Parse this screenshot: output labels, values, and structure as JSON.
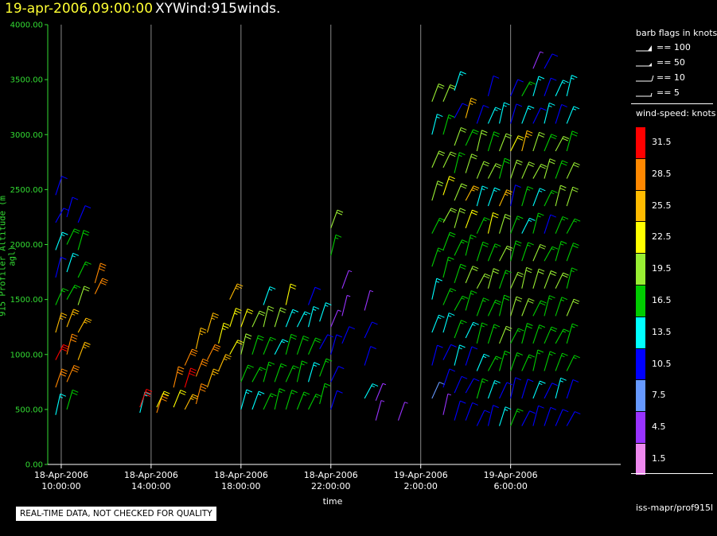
{
  "header": {
    "timestamp": "19-apr-2006,09:00:00",
    "product": "XYWind:915winds."
  },
  "legend": {
    "barb_title": "barb flags in knots",
    "barbs": [
      {
        "label": "== 100",
        "kind": "pennant"
      },
      {
        "label": "== 50",
        "kind": "half-pennant"
      },
      {
        "label": "== 10",
        "kind": "full-barb"
      },
      {
        "label": "== 5",
        "kind": "half-barb"
      }
    ],
    "speed_title": "wind-speed: knots",
    "source": "iss-mapr/prof915l"
  },
  "qc_note": "REAL-TIME DATA, NOT CHECKED FOR QUALITY",
  "chart_data": {
    "type": "scatter",
    "title": "19-apr-2006,09:00:00  XYWind:915winds.",
    "xlabel": "time",
    "ylabel": "915 Profiler Altitude (m agl)",
    "ylim": [
      0,
      4000
    ],
    "xlim_hours_from_ref": [
      -0.6,
      24.9
    ],
    "y_ticks": [
      "0.00",
      "500.00",
      "1000.00",
      "1500.00",
      "2000.00",
      "2500.00",
      "3000.00",
      "3500.00",
      "4000.00"
    ],
    "x_ticks": [
      {
        "date": "18-Apr-2006",
        "time": "10:00:00"
      },
      {
        "date": "18-Apr-2006",
        "time": "14:00:00"
      },
      {
        "date": "18-Apr-2006",
        "time": "18:00:00"
      },
      {
        "date": "18-Apr-2006",
        "time": "22:00:00"
      },
      {
        "date": "19-Apr-2006",
        "time": "2:00:00"
      },
      {
        "date": "19-Apr-2006",
        "time": "6:00:00"
      }
    ],
    "grid": "vertical",
    "colorbar": {
      "title": "wind-speed: knots",
      "levels": [
        {
          "value": "31.5",
          "color": "#ff0000"
        },
        {
          "value": "28.5",
          "color": "#ff8800"
        },
        {
          "value": "25.5",
          "color": "#ffbb00"
        },
        {
          "value": "22.5",
          "color": "#ffff00"
        },
        {
          "value": "19.5",
          "color": "#99ee33"
        },
        {
          "value": "16.5",
          "color": "#00cc00"
        },
        {
          "value": "13.5",
          "color": "#00ffff"
        },
        {
          "value": "10.5",
          "color": "#0000ff"
        },
        {
          "value": "7.5",
          "color": "#6699ff"
        },
        {
          "value": "4.5",
          "color": "#9933ff"
        },
        {
          "value": "1.5",
          "color": "#ee88ee"
        }
      ]
    },
    "profiles": [
      {
        "t": "18-Apr-2006 09:45",
        "alt": [
          450,
          700,
          950,
          1200,
          1450,
          1700,
          1950,
          2200,
          2450
        ],
        "speed": [
          13,
          28,
          31,
          25,
          16,
          12,
          14,
          11,
          11
        ]
      },
      {
        "t": "18-Apr-2006 10:15",
        "alt": [
          500,
          750,
          1000,
          1250,
          1500,
          1750,
          2000,
          2250
        ],
        "speed": [
          18,
          30,
          28,
          26,
          17,
          14,
          18,
          12
        ]
      },
      {
        "t": "18-Apr-2006 10:45",
        "alt": [
          950,
          1200,
          1450,
          1700,
          1950,
          2200
        ],
        "speed": [
          25,
          27,
          20,
          16,
          18,
          12
        ]
      },
      {
        "t": "18-Apr-2006 11:30",
        "alt": [
          1550,
          1650
        ],
        "speed": [
          30,
          29
        ]
      },
      {
        "t": "18-Apr-2006 13:30",
        "alt": [
          470,
          520
        ],
        "speed": [
          13,
          31
        ]
      },
      {
        "t": "18-Apr-2006 14:15",
        "alt": [
          470,
          520
        ],
        "speed": [
          30,
          22
        ]
      },
      {
        "t": "18-Apr-2006 15:00",
        "alt": [
          520,
          700
        ],
        "speed": [
          22,
          28
        ]
      },
      {
        "t": "18-Apr-2006 15:30",
        "alt": [
          500,
          700,
          900
        ],
        "speed": [
          27,
          31,
          28
        ]
      },
      {
        "t": "18-Apr-2006 16:00",
        "alt": [
          550,
          800,
          1050
        ],
        "speed": [
          28,
          30,
          27
        ]
      },
      {
        "t": "18-Apr-2006 16:30",
        "alt": [
          700,
          950,
          1200
        ],
        "speed": [
          27,
          29,
          26
        ]
      },
      {
        "t": "18-Apr-2006 17:00",
        "alt": [
          850,
          1100
        ],
        "speed": [
          25,
          24
        ]
      },
      {
        "t": "18-Apr-2006 17:30",
        "alt": [
          1000,
          1250,
          1500
        ],
        "speed": [
          22,
          23,
          25
        ]
      },
      {
        "t": "18-Apr-2006 18:00",
        "alt": [
          500,
          750,
          1000,
          1250
        ],
        "speed": [
          13,
          17,
          21,
          22
        ]
      },
      {
        "t": "18-Apr-2006 18:30",
        "alt": [
          500,
          750,
          1000,
          1250
        ],
        "speed": [
          14,
          17,
          18,
          19
        ]
      },
      {
        "t": "18-Apr-2006 19:00",
        "alt": [
          500,
          750,
          1000,
          1250,
          1450
        ],
        "speed": [
          16,
          16,
          17,
          19,
          13
        ]
      },
      {
        "t": "18-Apr-2006 19:30",
        "alt": [
          500,
          750,
          1000,
          1250
        ],
        "speed": [
          17,
          16,
          14,
          20
        ]
      },
      {
        "t": "18-Apr-2006 20:00",
        "alt": [
          500,
          750,
          1000,
          1250,
          1450
        ],
        "speed": [
          16,
          17,
          18,
          13,
          22
        ]
      },
      {
        "t": "18-Apr-2006 20:30",
        "alt": [
          500,
          750,
          1000,
          1250
        ],
        "speed": [
          17,
          16,
          18,
          13
        ]
      },
      {
        "t": "18-Apr-2006 21:00",
        "alt": [
          500,
          750,
          1000,
          1250,
          1450
        ],
        "speed": [
          16,
          13,
          18,
          14,
          11
        ]
      },
      {
        "t": "18-Apr-2006 21:30",
        "alt": [
          550,
          800,
          1050,
          1300
        ],
        "speed": [
          17,
          16,
          11,
          13
        ]
      },
      {
        "t": "18-Apr-2006 22:00",
        "alt": [
          500,
          750,
          1000,
          1250,
          1900,
          2150
        ],
        "speed": [
          12,
          11,
          11,
          4,
          16,
          20
        ]
      },
      {
        "t": "18-Apr-2006 22:30",
        "alt": [
          1100,
          1350,
          1600
        ],
        "speed": [
          11,
          4,
          5
        ]
      },
      {
        "t": "18-Apr-2006 23:30",
        "alt": [
          600,
          900,
          1150,
          1400
        ],
        "speed": [
          14,
          10,
          12,
          5
        ]
      },
      {
        "t": "19-Apr-2006 00:00",
        "alt": [
          400,
          580
        ],
        "speed": [
          5,
          4
        ]
      },
      {
        "t": "19-Apr-2006 01:00",
        "alt": [
          400
        ],
        "speed": [
          5
        ]
      },
      {
        "t": "19-Apr-2006 02:30",
        "alt": [
          600,
          900,
          1200,
          1500,
          1800,
          2100,
          2400,
          2700,
          3000,
          3300
        ],
        "speed": [
          9,
          11,
          13,
          14,
          16,
          17,
          19,
          20,
          15,
          19
        ]
      },
      {
        "t": "19-Apr-2006 03:00",
        "alt": [
          450,
          700,
          950,
          1200,
          1450,
          1700,
          1950,
          2200,
          2450,
          2700,
          3000,
          3300
        ],
        "speed": [
          4,
          10,
          12,
          13,
          16,
          17,
          18,
          20,
          22,
          19,
          16,
          21
        ]
      },
      {
        "t": "19-Apr-2006 03:30",
        "alt": [
          400,
          650,
          900,
          1150,
          1400,
          1650,
          1900,
          2150,
          2400,
          2650,
          2900,
          3150,
          3400
        ],
        "speed": [
          11,
          10,
          13,
          16,
          17,
          18,
          16,
          19,
          21,
          17,
          20,
          12,
          14
        ]
      },
      {
        "t": "19-Apr-2006 04:00",
        "alt": [
          400,
          650,
          900,
          1150,
          1400,
          1650,
          1900,
          2150,
          2400,
          2650,
          2900,
          3150
        ],
        "speed": [
          10,
          11,
          12,
          14,
          16,
          19,
          17,
          22,
          25,
          19,
          18,
          26
        ]
      },
      {
        "t": "19-Apr-2006 04:30",
        "alt": [
          350,
          600,
          850,
          1100,
          1350,
          1600,
          1850,
          2100,
          2350,
          2600,
          2850,
          3100
        ],
        "speed": [
          12,
          16,
          13,
          17,
          16,
          19,
          18,
          17,
          15,
          20,
          19,
          11
        ]
      },
      {
        "t": "19-Apr-2006 05:00",
        "alt": [
          350,
          600,
          850,
          1100,
          1350,
          1600,
          1850,
          2100,
          2350,
          2600,
          2850,
          3100,
          3350
        ],
        "speed": [
          11,
          13,
          16,
          17,
          18,
          19,
          17,
          22,
          13,
          19,
          18,
          13,
          11
        ]
      },
      {
        "t": "19-Apr-2006 05:30",
        "alt": [
          350,
          600,
          850,
          1100,
          1350,
          1600,
          1850,
          2100,
          2350,
          2600,
          2850,
          3100
        ],
        "speed": [
          14,
          10,
          16,
          19,
          18,
          17,
          19,
          20,
          26,
          18,
          19,
          13
        ]
      },
      {
        "t": "19-Apr-2006 06:00",
        "alt": [
          350,
          600,
          850,
          1100,
          1350,
          1600,
          1850,
          2100,
          2350,
          2600,
          2850,
          3100,
          3350
        ],
        "speed": [
          16,
          11,
          17,
          16,
          19,
          20,
          18,
          17,
          11,
          19,
          22,
          12,
          10
        ]
      },
      {
        "t": "19-Apr-2006 06:30",
        "alt": [
          350,
          600,
          850,
          1100,
          1350,
          1600,
          1850,
          2100,
          2350,
          2600,
          2850,
          3100,
          3350
        ],
        "speed": [
          11,
          12,
          17,
          18,
          20,
          19,
          17,
          13,
          16,
          19,
          25,
          13,
          16
        ]
      },
      {
        "t": "19-Apr-2006 07:00",
        "alt": [
          350,
          600,
          850,
          1100,
          1350,
          1600,
          1850,
          2100,
          2350,
          2600,
          2850,
          3100,
          3350,
          3600
        ],
        "speed": [
          10,
          13,
          16,
          17,
          18,
          19,
          20,
          16,
          13,
          20,
          19,
          11,
          13,
          4
        ]
      },
      {
        "t": "19-Apr-2006 07:30",
        "alt": [
          350,
          600,
          850,
          1100,
          1350,
          1600,
          1850,
          2100,
          2350,
          2600,
          2850,
          3100,
          3350,
          3600
        ],
        "speed": [
          11,
          12,
          16,
          18,
          17,
          19,
          16,
          11,
          17,
          19,
          18,
          13,
          12,
          10
        ]
      },
      {
        "t": "19-Apr-2006 08:00",
        "alt": [
          350,
          600,
          850,
          1100,
          1350,
          1600,
          1850,
          2100,
          2350,
          2600,
          2850,
          3100,
          3350
        ],
        "speed": [
          12,
          13,
          16,
          17,
          16,
          19,
          17,
          16,
          20,
          18,
          19,
          12,
          14
        ]
      },
      {
        "t": "19-Apr-2006 08:30",
        "alt": [
          350,
          600,
          850,
          1100,
          1350,
          1600,
          1850,
          2100,
          2350,
          2600,
          2850,
          3100,
          3350
        ],
        "speed": [
          11,
          10,
          16,
          17,
          19,
          17,
          18,
          16,
          19,
          20,
          18,
          13,
          15
        ]
      }
    ]
  }
}
